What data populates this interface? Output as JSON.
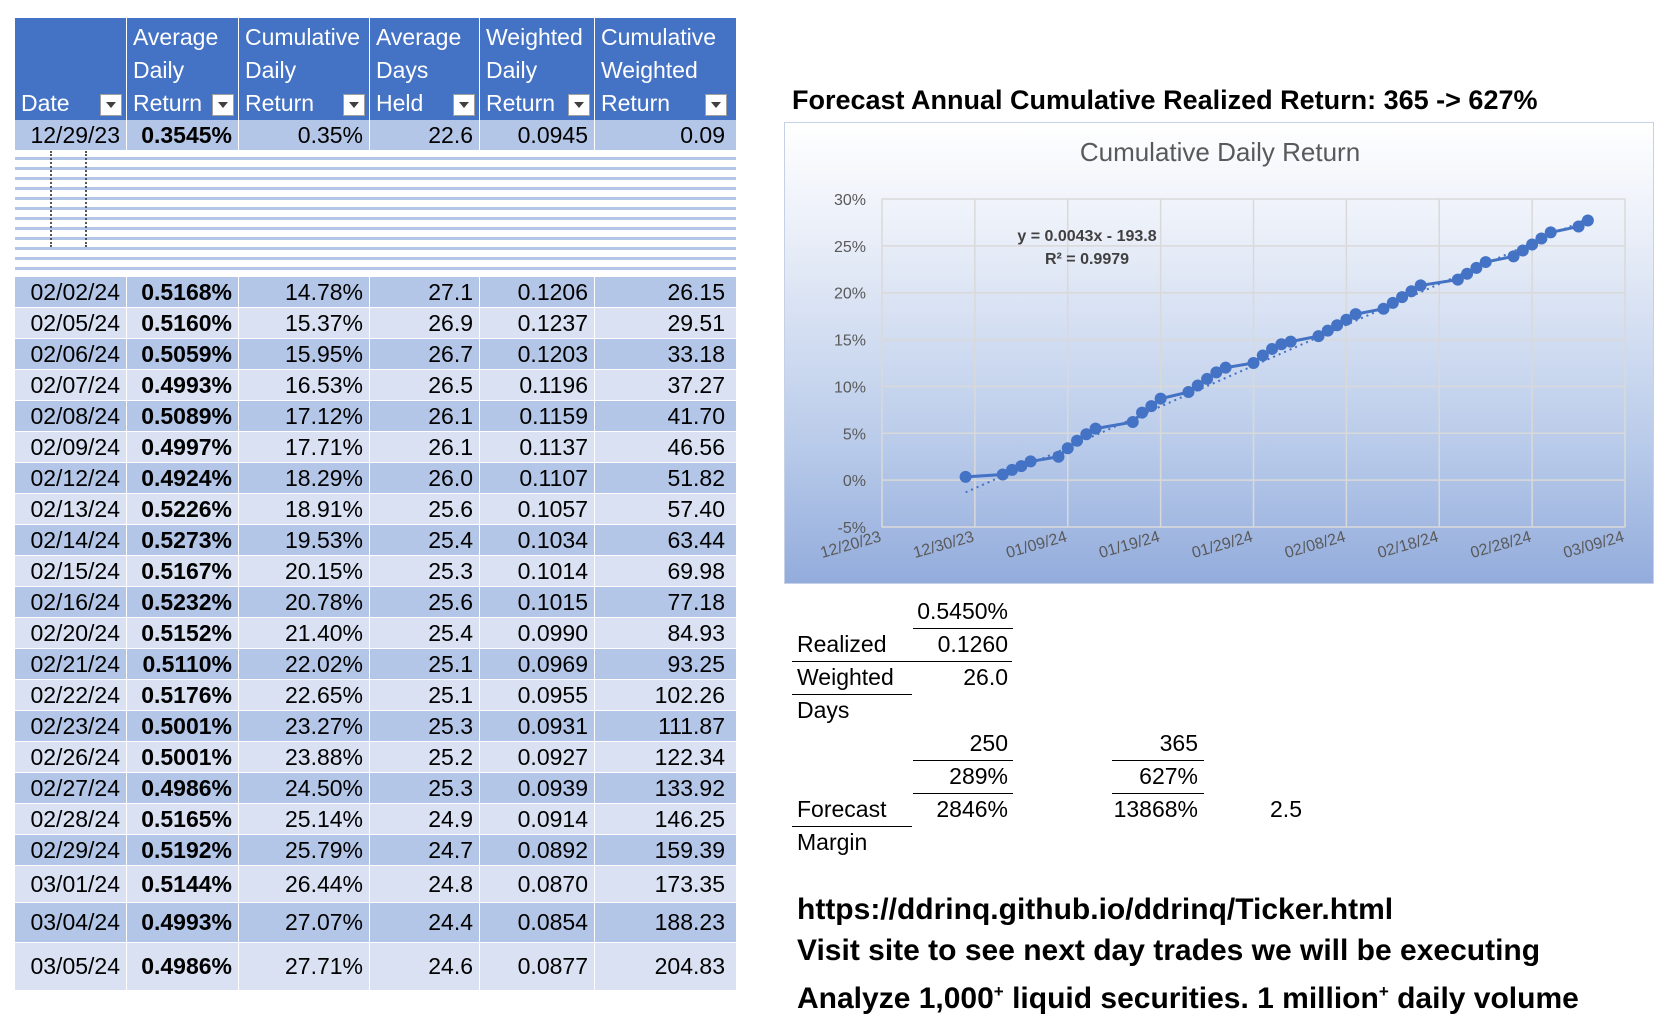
{
  "table": {
    "headers": [
      {
        "lines": [
          "",
          "",
          "Date"
        ]
      },
      {
        "lines": [
          "Average",
          "Daily",
          "Return"
        ]
      },
      {
        "lines": [
          "Cumulative",
          "Daily",
          "Return"
        ]
      },
      {
        "lines": [
          "Average",
          "Days",
          "Held"
        ]
      },
      {
        "lines": [
          "Weighted",
          "Daily",
          "Return"
        ]
      },
      {
        "lines": [
          "Cumulative",
          "Weighted",
          "Return"
        ]
      }
    ],
    "first_row": [
      "12/29/23",
      "0.3545%",
      "0.35%",
      "22.6",
      "0.0945",
      "0.09"
    ],
    "rows": [
      [
        "02/02/24",
        "0.5168%",
        "14.78%",
        "27.1",
        "0.1206",
        "26.15"
      ],
      [
        "02/05/24",
        "0.5160%",
        "15.37%",
        "26.9",
        "0.1237",
        "29.51"
      ],
      [
        "02/06/24",
        "0.5059%",
        "15.95%",
        "26.7",
        "0.1203",
        "33.18"
      ],
      [
        "02/07/24",
        "0.4993%",
        "16.53%",
        "26.5",
        "0.1196",
        "37.27"
      ],
      [
        "02/08/24",
        "0.5089%",
        "17.12%",
        "26.1",
        "0.1159",
        "41.70"
      ],
      [
        "02/09/24",
        "0.4997%",
        "17.71%",
        "26.1",
        "0.1137",
        "46.56"
      ],
      [
        "02/12/24",
        "0.4924%",
        "18.29%",
        "26.0",
        "0.1107",
        "51.82"
      ],
      [
        "02/13/24",
        "0.5226%",
        "18.91%",
        "25.6",
        "0.1057",
        "57.40"
      ],
      [
        "02/14/24",
        "0.5273%",
        "19.53%",
        "25.4",
        "0.1034",
        "63.44"
      ],
      [
        "02/15/24",
        "0.5167%",
        "20.15%",
        "25.3",
        "0.1014",
        "69.98"
      ],
      [
        "02/16/24",
        "0.5232%",
        "20.78%",
        "25.6",
        "0.1015",
        "77.18"
      ],
      [
        "02/20/24",
        "0.5152%",
        "21.40%",
        "25.4",
        "0.0990",
        "84.93"
      ],
      [
        "02/21/24",
        "0.5110%",
        "22.02%",
        "25.1",
        "0.0969",
        "93.25"
      ],
      [
        "02/22/24",
        "0.5176%",
        "22.65%",
        "25.1",
        "0.0955",
        "102.26"
      ],
      [
        "02/23/24",
        "0.5001%",
        "23.27%",
        "25.3",
        "0.0931",
        "111.87"
      ],
      [
        "02/26/24",
        "0.5001%",
        "23.88%",
        "25.2",
        "0.0927",
        "122.34"
      ],
      [
        "02/27/24",
        "0.4986%",
        "24.50%",
        "25.3",
        "0.0939",
        "133.92"
      ],
      [
        "02/28/24",
        "0.5165%",
        "25.14%",
        "24.9",
        "0.0914",
        "146.25"
      ],
      [
        "02/29/24",
        "0.5192%",
        "25.79%",
        "24.7",
        "0.0892",
        "159.39"
      ],
      [
        "03/01/24",
        "0.5144%",
        "26.44%",
        "24.8",
        "0.0870",
        "173.35"
      ],
      [
        "03/04/24",
        "0.4993%",
        "27.07%",
        "24.4",
        "0.0854",
        "188.23"
      ],
      [
        "03/05/24",
        "0.4986%",
        "27.71%",
        "24.6",
        "0.0877",
        "204.83"
      ]
    ]
  },
  "forecast_title": "Forecast Annual Cumulative Realized Return: 365 -> 627%",
  "chart_data": {
    "type": "line",
    "title": "Cumulative Daily Return",
    "xlabel": "",
    "ylabel": "",
    "x_ticks": [
      "12/20/23",
      "12/30/23",
      "01/09/24",
      "01/19/24",
      "01/29/24",
      "02/08/24",
      "02/18/24",
      "02/28/24",
      "03/09/24"
    ],
    "y_ticks": [
      "-5%",
      "0%",
      "5%",
      "10%",
      "15%",
      "20%",
      "25%",
      "30%"
    ],
    "ylim": [
      -5,
      30
    ],
    "xlim": [
      "12/20/23",
      "03/09/24"
    ],
    "trendline_label": "y = 0.0043x - 193.8",
    "r_squared_label": "R² = 0.9979",
    "grid": true,
    "legend": "none",
    "series": [
      {
        "x": [
          "12/29/23",
          "01/02/24",
          "01/03/24",
          "01/04/24",
          "01/05/24",
          "01/08/24",
          "01/09/24",
          "01/10/24",
          "01/11/24",
          "01/12/24",
          "01/16/24",
          "01/17/24",
          "01/18/24",
          "01/19/24",
          "01/22/24",
          "01/23/24",
          "01/24/24",
          "01/25/24",
          "01/26/24",
          "01/29/24",
          "01/30/24",
          "01/31/24",
          "02/01/24",
          "02/02/24",
          "02/05/24",
          "02/06/24",
          "02/07/24",
          "02/08/24",
          "02/09/24",
          "02/12/24",
          "02/13/24",
          "02/14/24",
          "02/15/24",
          "02/16/24",
          "02/20/24",
          "02/21/24",
          "02/22/24",
          "02/23/24",
          "02/26/24",
          "02/27/24",
          "02/28/24",
          "02/29/24",
          "03/01/24",
          "03/04/24",
          "03/05/24"
        ],
        "values": [
          0.35,
          0.6,
          1.1,
          1.5,
          2.0,
          2.5,
          3.4,
          4.2,
          4.9,
          5.5,
          6.2,
          7.2,
          7.9,
          8.7,
          9.4,
          10.1,
          10.8,
          11.5,
          12.0,
          12.5,
          13.3,
          14.0,
          14.5,
          14.78,
          15.37,
          15.95,
          16.53,
          17.12,
          17.71,
          18.29,
          18.91,
          19.53,
          20.15,
          20.78,
          21.4,
          22.02,
          22.65,
          23.27,
          23.88,
          24.5,
          25.14,
          25.79,
          26.44,
          27.07,
          27.71
        ],
        "color": "#4472c4"
      }
    ]
  },
  "calc": {
    "avg_daily": "0.5450%",
    "realized_label": "Realized",
    "weighted_value": "0.1260",
    "weighted_label": "Weighted",
    "days_value": "26.0",
    "days_label": "Days",
    "col1_header": "250",
    "col2_header": "365",
    "col1_pct": "289%",
    "col2_pct": "627%",
    "forecast_label": "Forecast",
    "col1_forecast": "2846%",
    "col2_forecast": "13868%",
    "ratio": "2.5",
    "margin_label": "Margin"
  },
  "footer": {
    "url": "https://ddrinq.github.io/ddrinq/Ticker.html",
    "line2": "Visit site to see next day trades we will be executing",
    "line3_a": "Analyze 1,000",
    "line3_sup1": "+",
    "line3_b": " liquid securities.  1 million",
    "line3_sup2": "+",
    "line3_c": " daily volume"
  }
}
